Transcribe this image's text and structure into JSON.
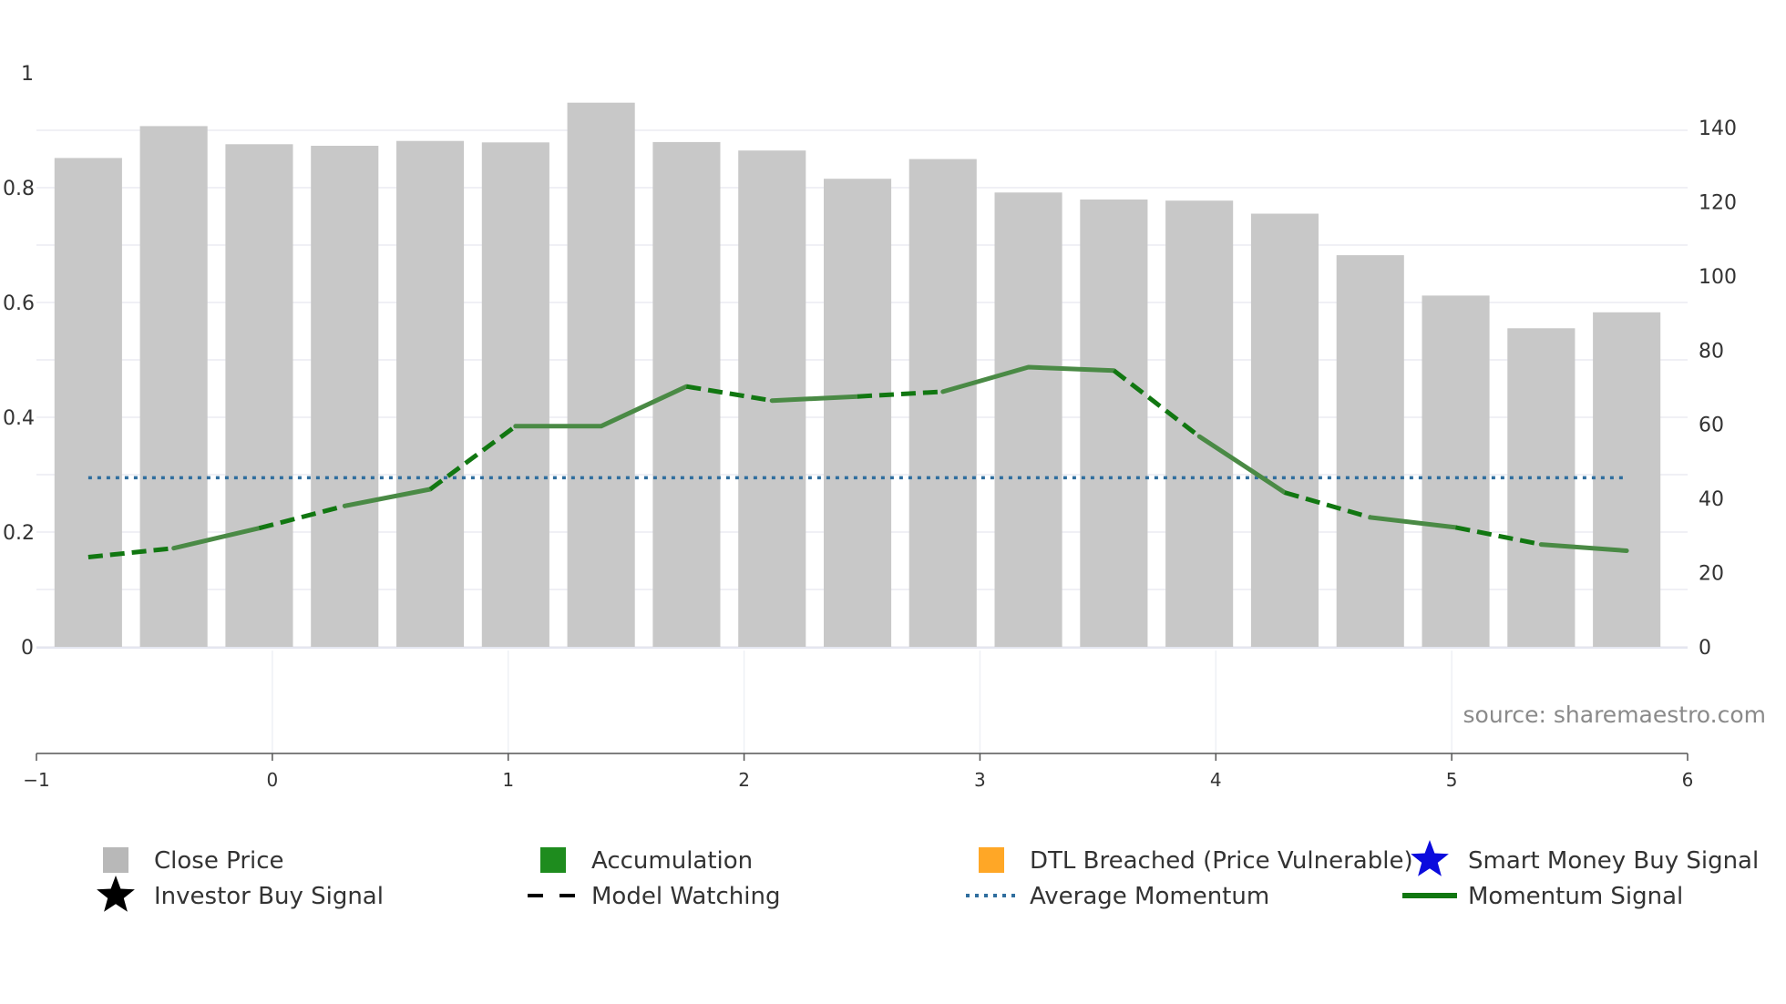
{
  "chart_data": {
    "type": "bar",
    "title": "",
    "source": "source: sharemaestro.com",
    "left_axis": {
      "range": [
        0,
        1
      ],
      "ticks": [
        "0",
        "0.2",
        "0.4",
        "0.6",
        "0.8",
        "1"
      ]
    },
    "right_axis": {
      "range": [
        0,
        155
      ],
      "ticks": [
        "0",
        "20",
        "40",
        "60",
        "80",
        "100",
        "120",
        "140"
      ]
    },
    "x_axis": {
      "range": [
        -1,
        6
      ],
      "ticks": [
        "−1",
        "0",
        "1",
        "2",
        "3",
        "4",
        "5",
        "6"
      ]
    },
    "series": [
      {
        "name": "Close Price",
        "kind": "bar",
        "color": "#c8c8c8",
        "values": [
          131.8,
          140.4,
          135.5,
          135.1,
          136.4,
          136.0,
          146.7,
          136.1,
          133.8,
          126.2,
          131.5,
          122.5,
          120.6,
          120.3,
          116.8,
          105.6,
          94.7,
          85.9,
          90.2
        ]
      },
      {
        "name": "Momentum Signal",
        "kind": "line",
        "color": "#4a8a45",
        "values": [
          24.2,
          26.6,
          32.0,
          38.0,
          42.5,
          59.5,
          59.5,
          70.2,
          66.4,
          67.5,
          68.8,
          75.4,
          74.5,
          56.7,
          41.6,
          34.9,
          32.2,
          27.6,
          25.9
        ],
        "segments": [
          {
            "from": 0,
            "to": 1,
            "state": "model_watching"
          },
          {
            "from": 1,
            "to": 2,
            "state": "momentum"
          },
          {
            "from": 2,
            "to": 3,
            "state": "model_watching"
          },
          {
            "from": 3,
            "to": 4,
            "state": "momentum"
          },
          {
            "from": 4,
            "to": 5,
            "state": "model_watching"
          },
          {
            "from": 5,
            "to": 7,
            "state": "momentum"
          },
          {
            "from": 7,
            "to": 8,
            "state": "model_watching"
          },
          {
            "from": 8,
            "to": 9,
            "state": "momentum"
          },
          {
            "from": 9,
            "to": 10,
            "state": "model_watching"
          },
          {
            "from": 10,
            "to": 12,
            "state": "momentum"
          },
          {
            "from": 12,
            "to": 13,
            "state": "model_watching"
          },
          {
            "from": 13,
            "to": 14,
            "state": "momentum"
          },
          {
            "from": 14,
            "to": 15,
            "state": "model_watching"
          },
          {
            "from": 15,
            "to": 16,
            "state": "momentum"
          },
          {
            "from": 16,
            "to": 17,
            "state": "model_watching"
          },
          {
            "from": 17,
            "to": 18,
            "state": "momentum"
          }
        ]
      },
      {
        "name": "Average Momentum",
        "kind": "line",
        "color": "#2f6e9e",
        "values": [
          45.6
        ]
      }
    ],
    "legend": [
      {
        "label": "Close Price",
        "symbol": "square",
        "color": "#b8b8b8"
      },
      {
        "label": "Accumulation",
        "symbol": "square",
        "color": "#1e8c1e"
      },
      {
        "label": "DTL Breached (Price Vulnerable)",
        "symbol": "square",
        "color": "#ffa726"
      },
      {
        "label": "Smart Money Buy Signal",
        "symbol": "star",
        "color": "#0b0bdd"
      },
      {
        "label": "Investor Buy Signal",
        "symbol": "star",
        "color": "#000000"
      },
      {
        "label": "Model Watching",
        "symbol": "dash",
        "color": "#000000"
      },
      {
        "label": "Average Momentum",
        "symbol": "dot",
        "color": "#2f6e9e"
      },
      {
        "label": "Momentum Signal",
        "symbol": "line",
        "color": "#117711"
      }
    ],
    "legend_position": "bottom"
  }
}
